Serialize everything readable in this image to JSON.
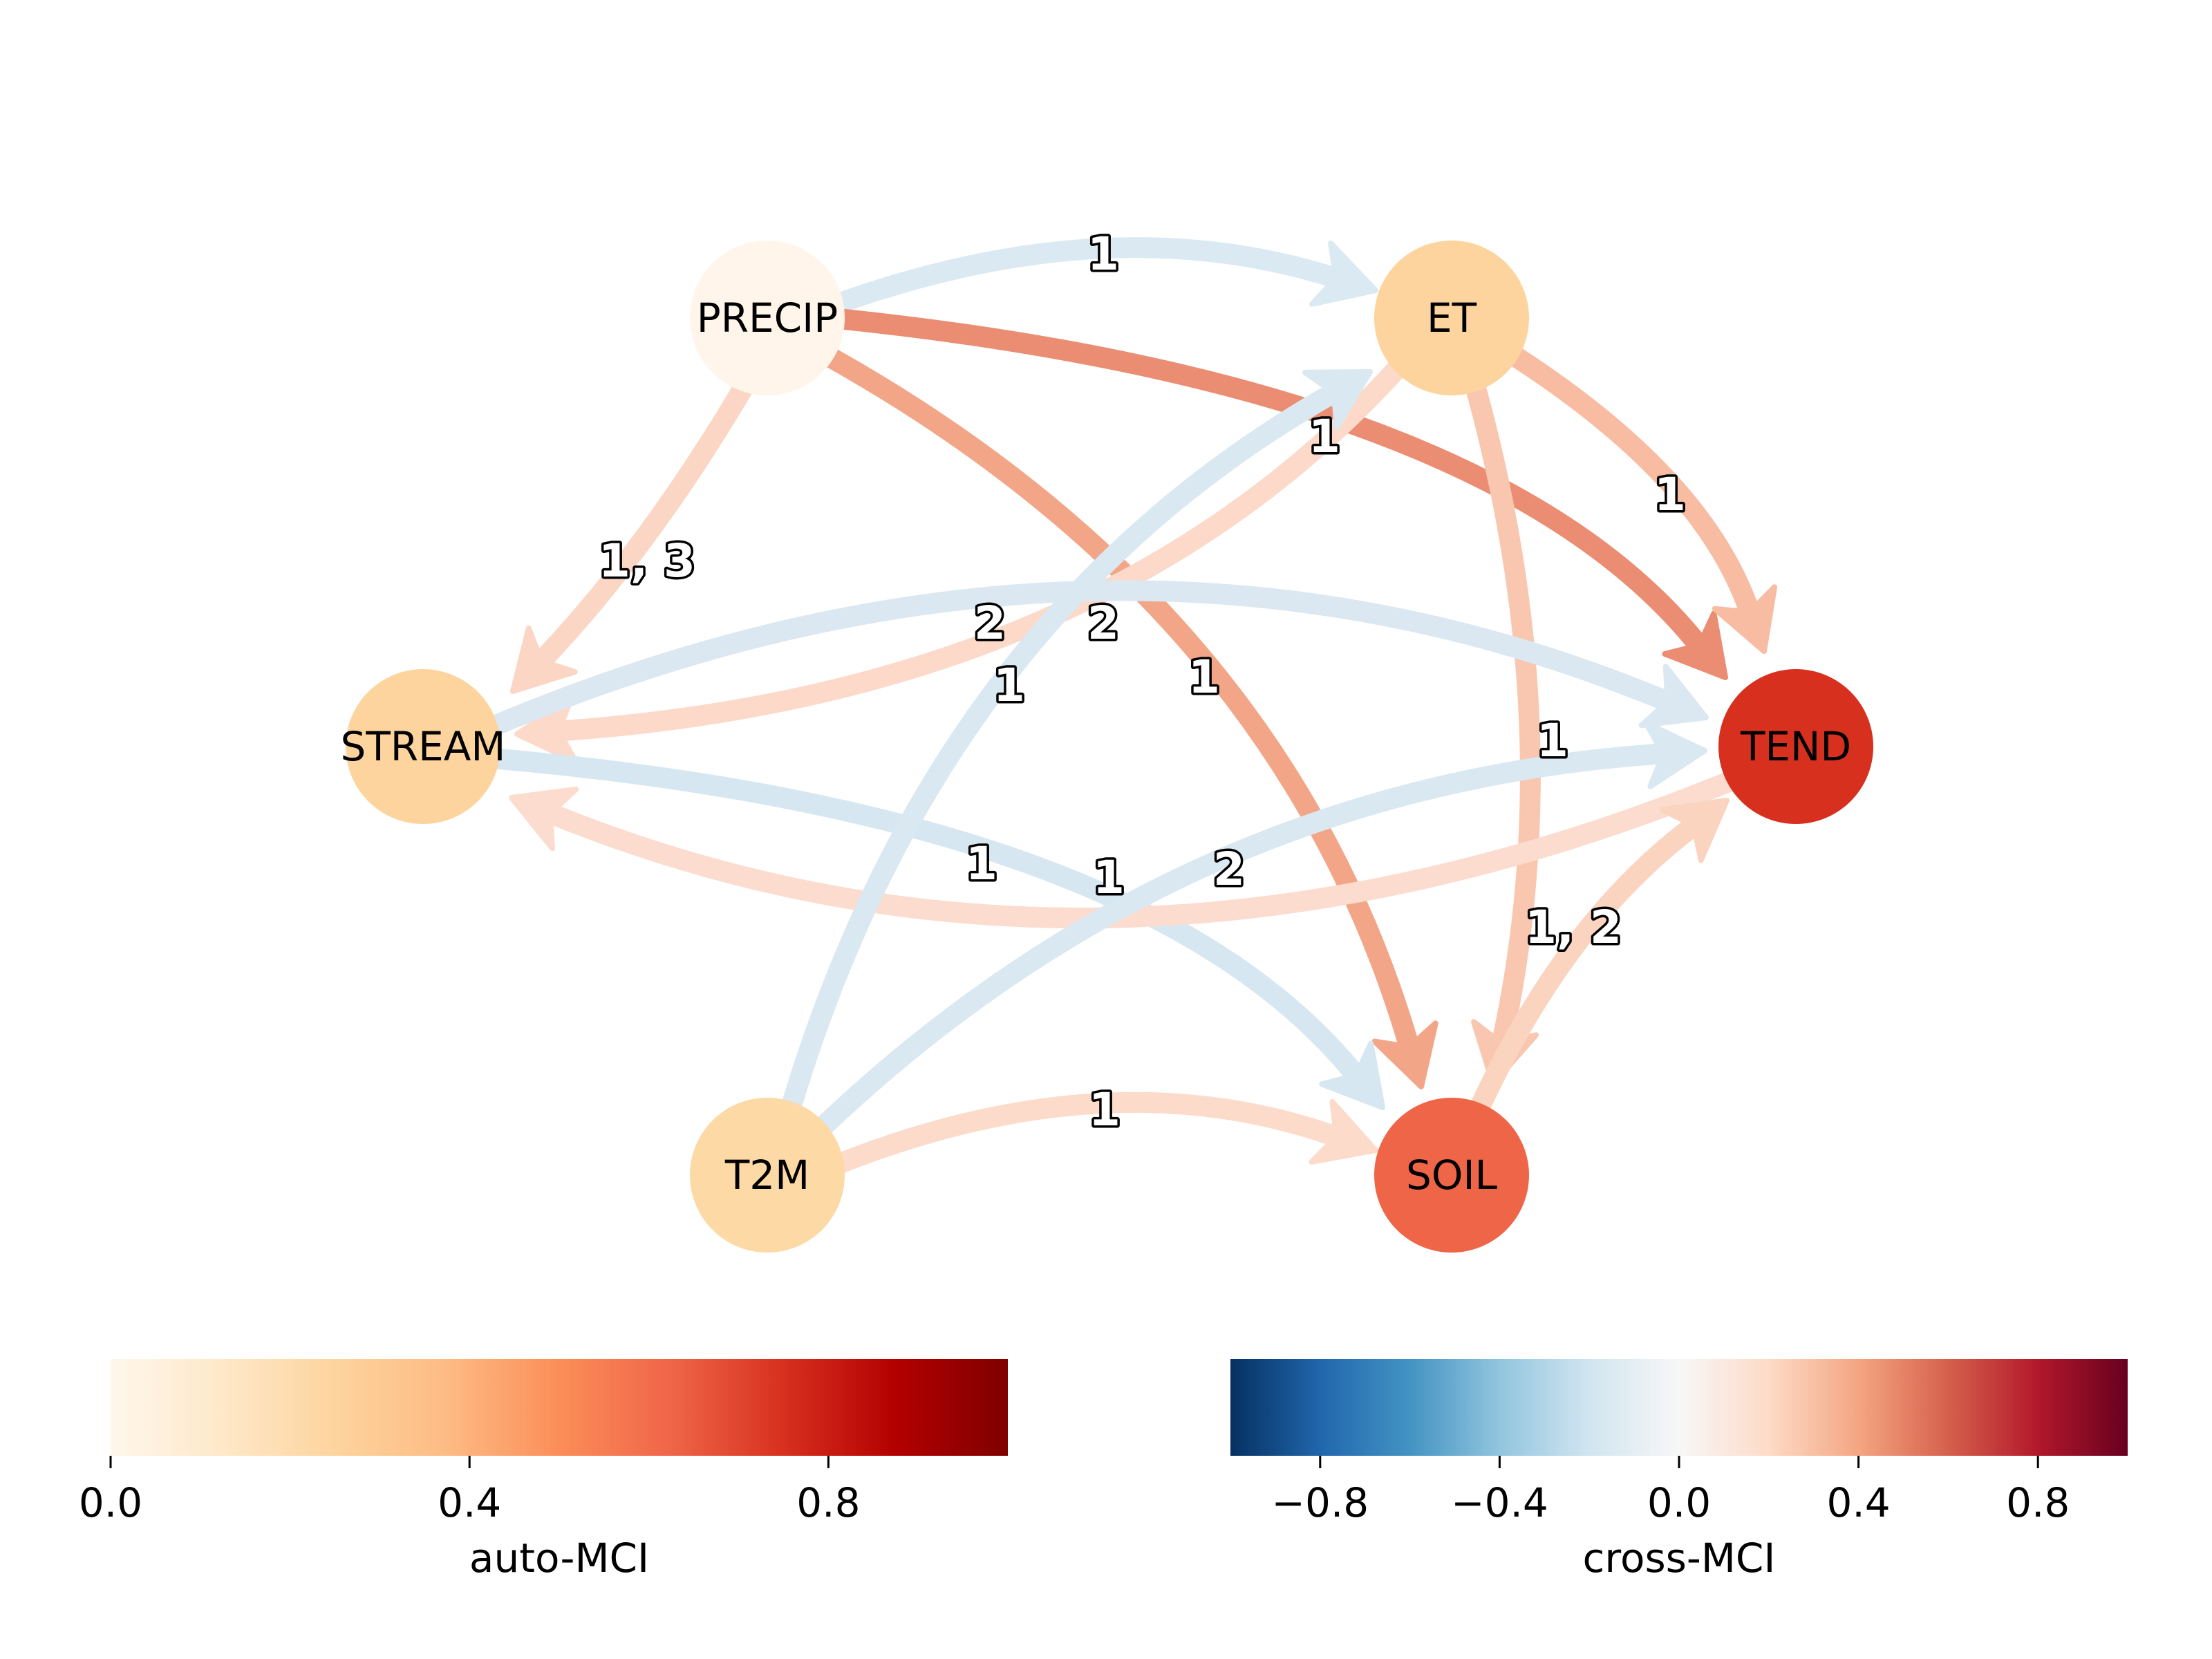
{
  "graph": {
    "nodes": [
      {
        "id": "PRECIP",
        "label": "PRECIP",
        "auto_mci": 0.02,
        "color": "#fff5eb"
      },
      {
        "id": "ET",
        "label": "ET",
        "auto_mci": 0.24,
        "color": "#fdd49e"
      },
      {
        "id": "STREAM",
        "label": "STREAM",
        "auto_mci": 0.24,
        "color": "#fdd49e"
      },
      {
        "id": "TEND",
        "label": "TEND",
        "auto_mci": 0.82,
        "color": "#d7301f"
      },
      {
        "id": "T2M",
        "label": "T2M",
        "auto_mci": 0.22,
        "color": "#fdd9a6"
      },
      {
        "id": "SOIL",
        "label": "SOIL",
        "auto_mci": 0.66,
        "color": "#ef6548"
      }
    ],
    "edges": [
      {
        "source": "PRECIP",
        "target": "ET",
        "lags": "1",
        "cross_mci": -0.2,
        "color": "#dbe9f2"
      },
      {
        "source": "PRECIP",
        "target": "TEND",
        "lags": "1",
        "cross_mci": 0.52,
        "color": "#ea8d72"
      },
      {
        "source": "PRECIP",
        "target": "SOIL",
        "lags": "1",
        "cross_mci": 0.4,
        "color": "#f3a687"
      },
      {
        "source": "PRECIP",
        "target": "STREAM",
        "lags": "1, 3",
        "cross_mci": 0.2,
        "color": "#fcd6c4"
      },
      {
        "source": "ET",
        "target": "TEND",
        "lags": "1",
        "cross_mci": 0.3,
        "color": "#f7bca2"
      },
      {
        "source": "ET",
        "target": "SOIL",
        "lags": "1",
        "cross_mci": 0.28,
        "color": "#f9c7b0"
      },
      {
        "source": "ET",
        "target": "STREAM",
        "lags": "2",
        "cross_mci": 0.18,
        "color": "#fcd9c8"
      },
      {
        "source": "STREAM",
        "target": "TEND",
        "lags": "2",
        "cross_mci": -0.2,
        "color": "#dbe8f1"
      },
      {
        "source": "STREAM",
        "target": "SOIL",
        "lags": "1",
        "cross_mci": -0.24,
        "color": "#d6e7f1"
      },
      {
        "source": "TEND",
        "target": "STREAM",
        "lags": "1",
        "cross_mci": 0.16,
        "color": "#fcdcce"
      },
      {
        "source": "T2M",
        "target": "ET",
        "lags": "1",
        "cross_mci": -0.22,
        "color": "#d9e8f1"
      },
      {
        "source": "T2M",
        "target": "TEND",
        "lags": "2",
        "cross_mci": -0.22,
        "color": "#d9e8f1"
      },
      {
        "source": "T2M",
        "target": "SOIL",
        "lags": "1",
        "cross_mci": 0.18,
        "color": "#fcdbcb"
      },
      {
        "source": "SOIL",
        "target": "TEND",
        "lags": "1, 2",
        "cross_mci": 0.24,
        "color": "#fbd4c0"
      }
    ]
  },
  "colorbars": {
    "auto": {
      "title": "auto-MCI",
      "range": [
        0,
        1
      ],
      "ticks": [
        0,
        0.4,
        0.8
      ],
      "tick_labels": [
        "0.0",
        "0.4",
        "0.8"
      ],
      "colormap": "OrRd",
      "stops": [
        "#fff7ec",
        "#fee8c8",
        "#fdd49e",
        "#fdbb84",
        "#fc8d59",
        "#ef6548",
        "#d7301f",
        "#b30000",
        "#7f0000"
      ]
    },
    "cross": {
      "title": "cross-MCI",
      "range": [
        -1,
        1
      ],
      "ticks": [
        -0.8,
        -0.4,
        0,
        0.4,
        0.8
      ],
      "tick_labels": [
        "−0.8",
        "−0.4",
        "0.0",
        "0.4",
        "0.8"
      ],
      "colormap": "RdBu_r",
      "stops": [
        "#053061",
        "#2166ac",
        "#4393c3",
        "#92c5de",
        "#d1e5f0",
        "#f7f7f7",
        "#fddbc7",
        "#f4a582",
        "#d6604d",
        "#b2182b",
        "#67001f"
      ]
    }
  }
}
